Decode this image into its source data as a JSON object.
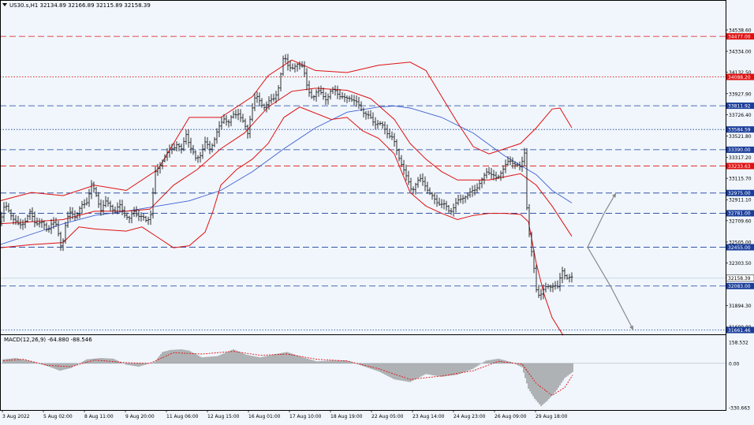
{
  "header": {
    "symbol_line": "US30.s,H1  32134.89 32166.89 32115.89 32158.39",
    "macd_label": "MACD(12,26,9) -64.880 -88.546"
  },
  "colors": {
    "background": "#f0f6fc",
    "candles": "#1a1a1a",
    "bollinger": "#e01010",
    "moving_average": "#4060d0",
    "macd_hist": "#7a7a7a",
    "macd_signal": "#e01010",
    "level_blue": "#1a3d9a",
    "level_red": "#e01010",
    "projection": "#8a8a8a"
  },
  "chart_data": [
    {
      "type": "candlestick",
      "symbol": "US30.s",
      "timeframe": "H1",
      "ylim": [
        31620,
        34720
      ],
      "price_ticks": [
        "34538.60",
        "34334.00",
        "34132.50",
        "33927.90",
        "33726.40",
        "33521.80",
        "33317.20",
        "33115.70",
        "32911.10",
        "32709.60",
        "32505.00",
        "32303.50",
        "31894.30",
        "31690.80"
      ],
      "x_ticks": [
        "3 Aug 2022",
        "5 Aug 02:00",
        "8 Aug 11:00",
        "9 Aug 20:00",
        "11 Aug 06:00",
        "12 Aug 15:00",
        "16 Aug 01:00",
        "17 Aug 10:00",
        "18 Aug 19:00",
        "22 Aug 05:00",
        "23 Aug 14:00",
        "24 Aug 23:00",
        "26 Aug 09:00",
        "29 Aug 18:00"
      ],
      "current_price": "32158.39",
      "levels": [
        {
          "price": 34477.0,
          "label": "34477.00",
          "style": "red-dash"
        },
        {
          "price": 34088.2,
          "label": "34088.20",
          "style": "red-dot"
        },
        {
          "price": 33811.92,
          "label": "33811.92",
          "style": "blue-dash"
        },
        {
          "price": 33584.59,
          "label": "33584.59",
          "style": "blue-dot"
        },
        {
          "price": 33390.0,
          "label": "33390.00",
          "style": "blue-dash"
        },
        {
          "price": 33233.63,
          "label": "33233.63",
          "style": "red-dash"
        },
        {
          "price": 32975.0,
          "label": "32975.00",
          "style": "blue-dash"
        },
        {
          "price": 32781.0,
          "label": "32781.00",
          "style": "blue-dash"
        },
        {
          "price": 32455.0,
          "label": "32455.00",
          "style": "blue-dash"
        },
        {
          "price": 32083.0,
          "label": "32083.00",
          "style": "blue-dash"
        },
        {
          "price": 31661.46,
          "label": "31661.46",
          "style": "blue-dot"
        }
      ],
      "price_path": [
        [
          0,
          32700
        ],
        [
          6,
          32850
        ],
        [
          12,
          32800
        ],
        [
          18,
          32720
        ],
        [
          24,
          32650
        ],
        [
          30,
          32700
        ],
        [
          38,
          32780
        ],
        [
          44,
          32700
        ],
        [
          52,
          32690
        ],
        [
          60,
          32620
        ],
        [
          66,
          32700
        ],
        [
          72,
          32650
        ],
        [
          78,
          32450
        ],
        [
          84,
          32700
        ],
        [
          90,
          32800
        ],
        [
          96,
          32750
        ],
        [
          104,
          32850
        ],
        [
          110,
          32900
        ],
        [
          116,
          33050
        ],
        [
          122,
          32950
        ],
        [
          128,
          32820
        ],
        [
          134,
          32880
        ],
        [
          140,
          32860
        ],
        [
          146,
          32800
        ],
        [
          152,
          32850
        ],
        [
          158,
          32780
        ],
        [
          164,
          32720
        ],
        [
          170,
          32800
        ],
        [
          178,
          32750
        ],
        [
          186,
          32700
        ],
        [
          192,
          32800
        ],
        [
          196,
          33150
        ],
        [
          200,
          33200
        ],
        [
          206,
          33300
        ],
        [
          212,
          33350
        ],
        [
          218,
          33400
        ],
        [
          224,
          33450
        ],
        [
          230,
          33380
        ],
        [
          236,
          33550
        ],
        [
          242,
          33400
        ],
        [
          248,
          33300
        ],
        [
          254,
          33350
        ],
        [
          260,
          33450
        ],
        [
          266,
          33400
        ],
        [
          272,
          33500
        ],
        [
          278,
          33600
        ],
        [
          284,
          33700
        ],
        [
          290,
          33650
        ],
        [
          296,
          33720
        ],
        [
          302,
          33750
        ],
        [
          308,
          33650
        ],
        [
          314,
          33550
        ],
        [
          318,
          33750
        ],
        [
          324,
          33900
        ],
        [
          330,
          33850
        ],
        [
          336,
          33800
        ],
        [
          342,
          33850
        ],
        [
          348,
          33900
        ],
        [
          354,
          34000
        ],
        [
          360,
          34300
        ],
        [
          366,
          34200
        ],
        [
          372,
          34150
        ],
        [
          378,
          34220
        ],
        [
          384,
          34200
        ],
        [
          390,
          33950
        ],
        [
          396,
          33900
        ],
        [
          402,
          33950
        ],
        [
          408,
          33920
        ],
        [
          414,
          33880
        ],
        [
          420,
          33950
        ],
        [
          426,
          33960
        ],
        [
          432,
          33900
        ],
        [
          438,
          33870
        ],
        [
          444,
          33900
        ],
        [
          450,
          33850
        ],
        [
          456,
          33800
        ],
        [
          462,
          33750
        ],
        [
          468,
          33700
        ],
        [
          474,
          33650
        ],
        [
          480,
          33650
        ],
        [
          486,
          33600
        ],
        [
          492,
          33550
        ],
        [
          498,
          33500
        ],
        [
          504,
          33350
        ],
        [
          510,
          33250
        ],
        [
          516,
          33100
        ],
        [
          522,
          33000
        ],
        [
          528,
          33080
        ],
        [
          534,
          33100
        ],
        [
          540,
          33050
        ],
        [
          546,
          32950
        ],
        [
          552,
          32900
        ],
        [
          558,
          32880
        ],
        [
          564,
          32850
        ],
        [
          570,
          32800
        ],
        [
          576,
          32850
        ],
        [
          582,
          32900
        ],
        [
          588,
          32950
        ],
        [
          594,
          32950
        ],
        [
          600,
          33000
        ],
        [
          606,
          33050
        ],
        [
          612,
          33100
        ],
        [
          618,
          33200
        ],
        [
          624,
          33150
        ],
        [
          630,
          33100
        ],
        [
          636,
          33200
        ],
        [
          642,
          33250
        ],
        [
          648,
          33280
        ],
        [
          654,
          33260
        ],
        [
          660,
          33200
        ],
        [
          666,
          33400
        ],
        [
          668,
          32850
        ],
        [
          672,
          32500
        ],
        [
          676,
          32300
        ],
        [
          680,
          32050
        ],
        [
          684,
          32000
        ],
        [
          690,
          32050
        ],
        [
          696,
          32080
        ],
        [
          702,
          32100
        ],
        [
          708,
          32050
        ],
        [
          712,
          32250
        ],
        [
          716,
          32200
        ],
        [
          720,
          32150
        ],
        [
          726,
          32158
        ]
      ],
      "bb_upper": [
        [
          0,
          32900
        ],
        [
          40,
          32980
        ],
        [
          80,
          32950
        ],
        [
          120,
          33050
        ],
        [
          160,
          33000
        ],
        [
          200,
          33200
        ],
        [
          240,
          33700
        ],
        [
          280,
          33700
        ],
        [
          320,
          33900
        ],
        [
          340,
          34100
        ],
        [
          370,
          34250
        ],
        [
          400,
          34150
        ],
        [
          440,
          34130
        ],
        [
          480,
          34200
        ],
        [
          520,
          34230
        ],
        [
          540,
          34150
        ],
        [
          560,
          33900
        ],
        [
          580,
          33650
        ],
        [
          600,
          33420
        ],
        [
          620,
          33350
        ],
        [
          640,
          33400
        ],
        [
          660,
          33450
        ],
        [
          680,
          33600
        ],
        [
          700,
          33780
        ],
        [
          710,
          33790
        ],
        [
          725,
          33600
        ]
      ],
      "bb_lower": [
        [
          0,
          32450
        ],
        [
          40,
          32480
        ],
        [
          80,
          32500
        ],
        [
          100,
          32650
        ],
        [
          120,
          32630
        ],
        [
          160,
          32610
        ],
        [
          180,
          32650
        ],
        [
          200,
          32550
        ],
        [
          220,
          32450
        ],
        [
          240,
          32470
        ],
        [
          260,
          32600
        ],
        [
          270,
          32800
        ],
        [
          280,
          33050
        ],
        [
          300,
          33200
        ],
        [
          320,
          33300
        ],
        [
          340,
          33450
        ],
        [
          360,
          33700
        ],
        [
          380,
          33800
        ],
        [
          420,
          33680
        ],
        [
          440,
          33700
        ],
        [
          460,
          33570
        ],
        [
          480,
          33500
        ],
        [
          500,
          33350
        ],
        [
          520,
          32980
        ],
        [
          540,
          32850
        ],
        [
          560,
          32780
        ],
        [
          580,
          32720
        ],
        [
          600,
          32760
        ],
        [
          620,
          32780
        ],
        [
          640,
          32780
        ],
        [
          660,
          32770
        ],
        [
          670,
          32700
        ],
        [
          680,
          32300
        ],
        [
          690,
          32000
        ],
        [
          700,
          31780
        ],
        [
          714,
          31610
        ]
      ],
      "bb_mid": [
        [
          0,
          32680
        ],
        [
          40,
          32700
        ],
        [
          80,
          32720
        ],
        [
          120,
          32800
        ],
        [
          160,
          32800
        ],
        [
          190,
          32820
        ],
        [
          220,
          33050
        ],
        [
          250,
          33200
        ],
        [
          280,
          33400
        ],
        [
          310,
          33550
        ],
        [
          340,
          33800
        ],
        [
          370,
          33950
        ],
        [
          400,
          33980
        ],
        [
          440,
          33960
        ],
        [
          470,
          33880
        ],
        [
          500,
          33680
        ],
        [
          520,
          33450
        ],
        [
          540,
          33300
        ],
        [
          560,
          33180
        ],
        [
          580,
          33100
        ],
        [
          600,
          33100
        ],
        [
          620,
          33100
        ],
        [
          640,
          33130
        ],
        [
          660,
          33160
        ],
        [
          680,
          33050
        ],
        [
          700,
          32850
        ],
        [
          725,
          32560
        ]
      ],
      "ma_slow": [
        [
          0,
          32480
        ],
        [
          40,
          32580
        ],
        [
          80,
          32680
        ],
        [
          120,
          32760
        ],
        [
          160,
          32800
        ],
        [
          200,
          32850
        ],
        [
          240,
          32900
        ],
        [
          280,
          33000
        ],
        [
          320,
          33180
        ],
        [
          360,
          33400
        ],
        [
          400,
          33600
        ],
        [
          440,
          33750
        ],
        [
          480,
          33800
        ],
        [
          500,
          33810
        ],
        [
          520,
          33790
        ],
        [
          560,
          33700
        ],
        [
          600,
          33550
        ],
        [
          640,
          33330
        ],
        [
          680,
          33150
        ],
        [
          700,
          33000
        ],
        [
          725,
          32880
        ]
      ],
      "projection": {
        "up": [
          [
            745,
            32455
          ],
          [
            766,
            32781
          ],
          [
            781,
            32975
          ]
        ],
        "down": [
          [
            745,
            32455
          ],
          [
            774,
            32083
          ],
          [
            803,
            31661
          ]
        ]
      }
    },
    {
      "type": "macd-histogram",
      "label": "MACD(12,26,9)",
      "macd": -64.88,
      "signal": -88.546,
      "y_ticks": [
        "158.532",
        "0.00",
        "-330.663"
      ],
      "ylim": [
        -348.8,
        205.3
      ],
      "histogram": [
        [
          4,
          30
        ],
        [
          20,
          40
        ],
        [
          40,
          15
        ],
        [
          60,
          -20
        ],
        [
          76,
          -55
        ],
        [
          90,
          -35
        ],
        [
          110,
          30
        ],
        [
          128,
          40
        ],
        [
          144,
          35
        ],
        [
          160,
          -10
        ],
        [
          176,
          -25
        ],
        [
          196,
          10
        ],
        [
          206,
          85
        ],
        [
          216,
          100
        ],
        [
          230,
          105
        ],
        [
          240,
          95
        ],
        [
          256,
          45
        ],
        [
          276,
          55
        ],
        [
          296,
          105
        ],
        [
          312,
          65
        ],
        [
          330,
          45
        ],
        [
          350,
          70
        ],
        [
          364,
          85
        ],
        [
          384,
          45
        ],
        [
          402,
          15
        ],
        [
          420,
          22
        ],
        [
          440,
          22
        ],
        [
          460,
          -20
        ],
        [
          480,
          -60
        ],
        [
          500,
          -120
        ],
        [
          520,
          -140
        ],
        [
          540,
          -80
        ],
        [
          560,
          -100
        ],
        [
          580,
          -85
        ],
        [
          600,
          -40
        ],
        [
          616,
          20
        ],
        [
          632,
          35
        ],
        [
          648,
          10
        ],
        [
          662,
          -30
        ],
        [
          670,
          -190
        ],
        [
          678,
          -265
        ],
        [
          686,
          -320
        ],
        [
          694,
          -280
        ],
        [
          706,
          -200
        ],
        [
          716,
          -110
        ],
        [
          726,
          -65
        ]
      ],
      "signal_line": [
        [
          4,
          20
        ],
        [
          30,
          30
        ],
        [
          60,
          -15
        ],
        [
          90,
          -25
        ],
        [
          120,
          25
        ],
        [
          160,
          5
        ],
        [
          190,
          0
        ],
        [
          220,
          80
        ],
        [
          256,
          70
        ],
        [
          296,
          90
        ],
        [
          330,
          60
        ],
        [
          364,
          70
        ],
        [
          402,
          30
        ],
        [
          440,
          18
        ],
        [
          480,
          -40
        ],
        [
          520,
          -120
        ],
        [
          560,
          -95
        ],
        [
          600,
          -55
        ],
        [
          632,
          15
        ],
        [
          662,
          -5
        ],
        [
          680,
          -150
        ],
        [
          700,
          -240
        ],
        [
          716,
          -180
        ],
        [
          726,
          -88
        ]
      ]
    }
  ]
}
